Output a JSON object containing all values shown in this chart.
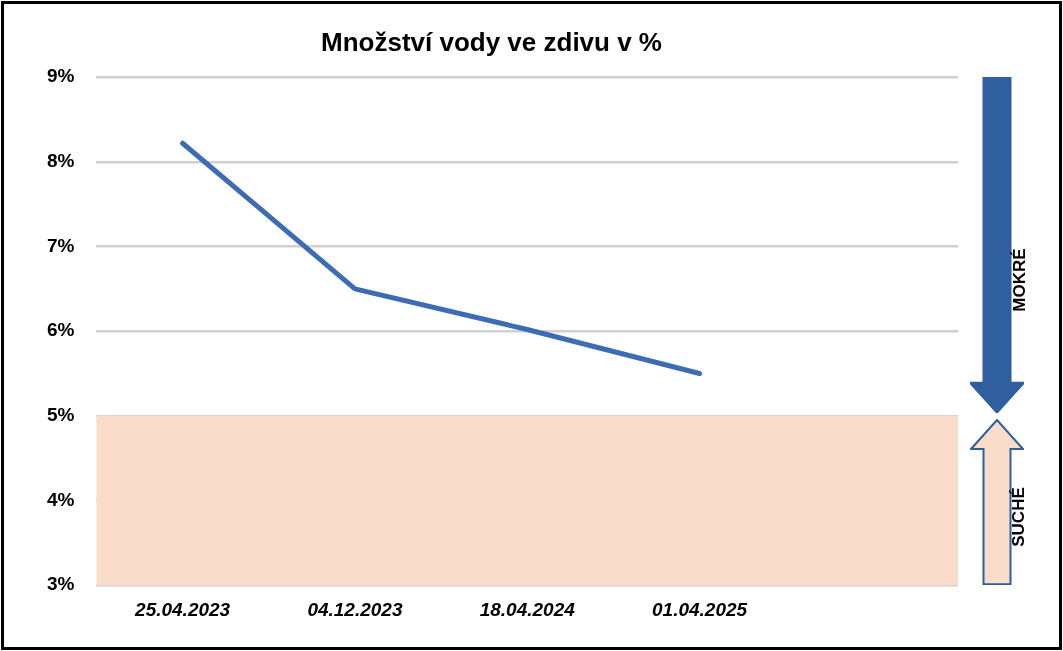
{
  "chart_data": {
    "type": "line",
    "title": "Množství vody ve zdivu v %",
    "categories": [
      "25.04.2023",
      "04.12.2023",
      "18.04.2024",
      "01.04.2025",
      null
    ],
    "series": [
      {
        "color": "#3d6cb4",
        "values": [
          8.22,
          6.5,
          6.02,
          5.5,
          null
        ]
      }
    ],
    "ylim": [
      3,
      9
    ],
    "yticks": [
      {
        "value": 3,
        "label": "3%"
      },
      {
        "value": 4,
        "label": "4%"
      },
      {
        "value": 5,
        "label": "5%"
      },
      {
        "value": 6,
        "label": "6%"
      },
      {
        "value": 7,
        "label": "7%"
      },
      {
        "value": 8,
        "label": "8%"
      },
      {
        "value": 9,
        "label": "9%"
      }
    ],
    "bands": [
      {
        "axis": "y",
        "from": 3,
        "to": 5,
        "color": "#f9dcc9"
      }
    ],
    "annotations": [
      "MOKRÉ",
      "SUCHÉ"
    ],
    "grid": "y",
    "legend": false,
    "marker": "none",
    "line_style": "solid"
  }
}
